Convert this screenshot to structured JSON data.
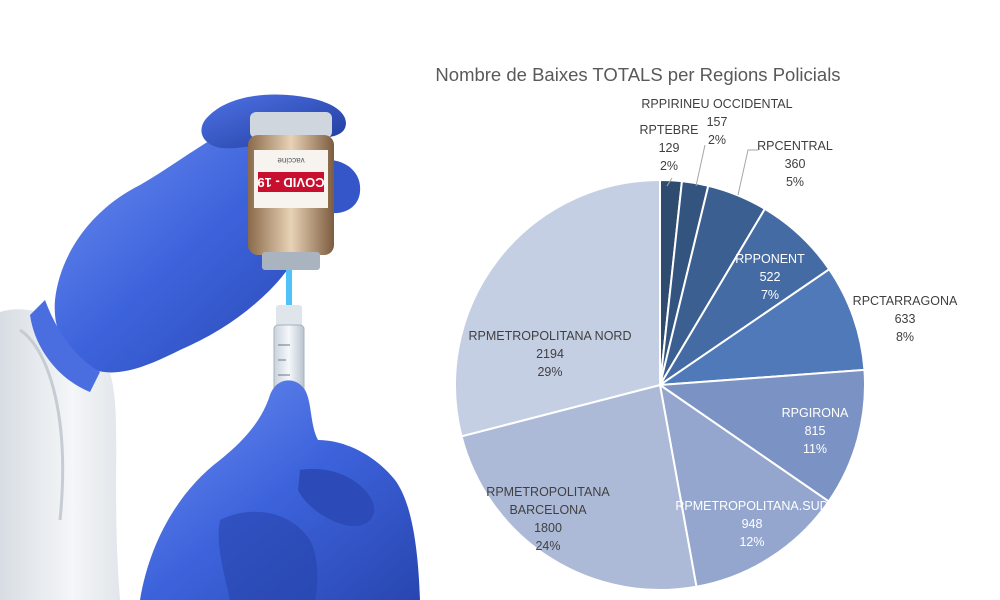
{
  "photo": {
    "vial_label_text": "COVID - 19",
    "vial_small_text": "vaccine"
  },
  "chart_data": {
    "type": "pie",
    "title": "Nombre de Baixes TOTALS per Regions Policials",
    "slices": [
      {
        "name": "RPTEBRE",
        "value": 129,
        "percent": "2%",
        "color": "#2f4b70"
      },
      {
        "name": "RPPIRINEU OCCIDENTAL",
        "value": 157,
        "percent": "2%",
        "color": "#345480"
      },
      {
        "name": "RPCENTRAL",
        "value": 360,
        "percent": "5%",
        "color": "#3b5f91"
      },
      {
        "name": "RPPONENT",
        "value": 522,
        "percent": "7%",
        "color": "#446ba3"
      },
      {
        "name": "RPCTARRAGONA",
        "value": 633,
        "percent": "8%",
        "color": "#4f79b8"
      },
      {
        "name": "RPGIRONA",
        "value": 815,
        "percent": "11%",
        "color": "#7b93c4"
      },
      {
        "name": "RPMETROPOLITANA.SUD",
        "value": 948,
        "percent": "12%",
        "color": "#94a6cd"
      },
      {
        "name": "RPMETROPOLITANA BARCELONA",
        "value": 1800,
        "percent": "24%",
        "color": "#acbad8",
        "label_lines": [
          "RPMETROPOLITANA",
          "BARCELONA"
        ]
      },
      {
        "name": "RPMETROPOLITANA NORD",
        "value": 2194,
        "percent": "29%",
        "color": "#c5cfe4"
      }
    ]
  }
}
